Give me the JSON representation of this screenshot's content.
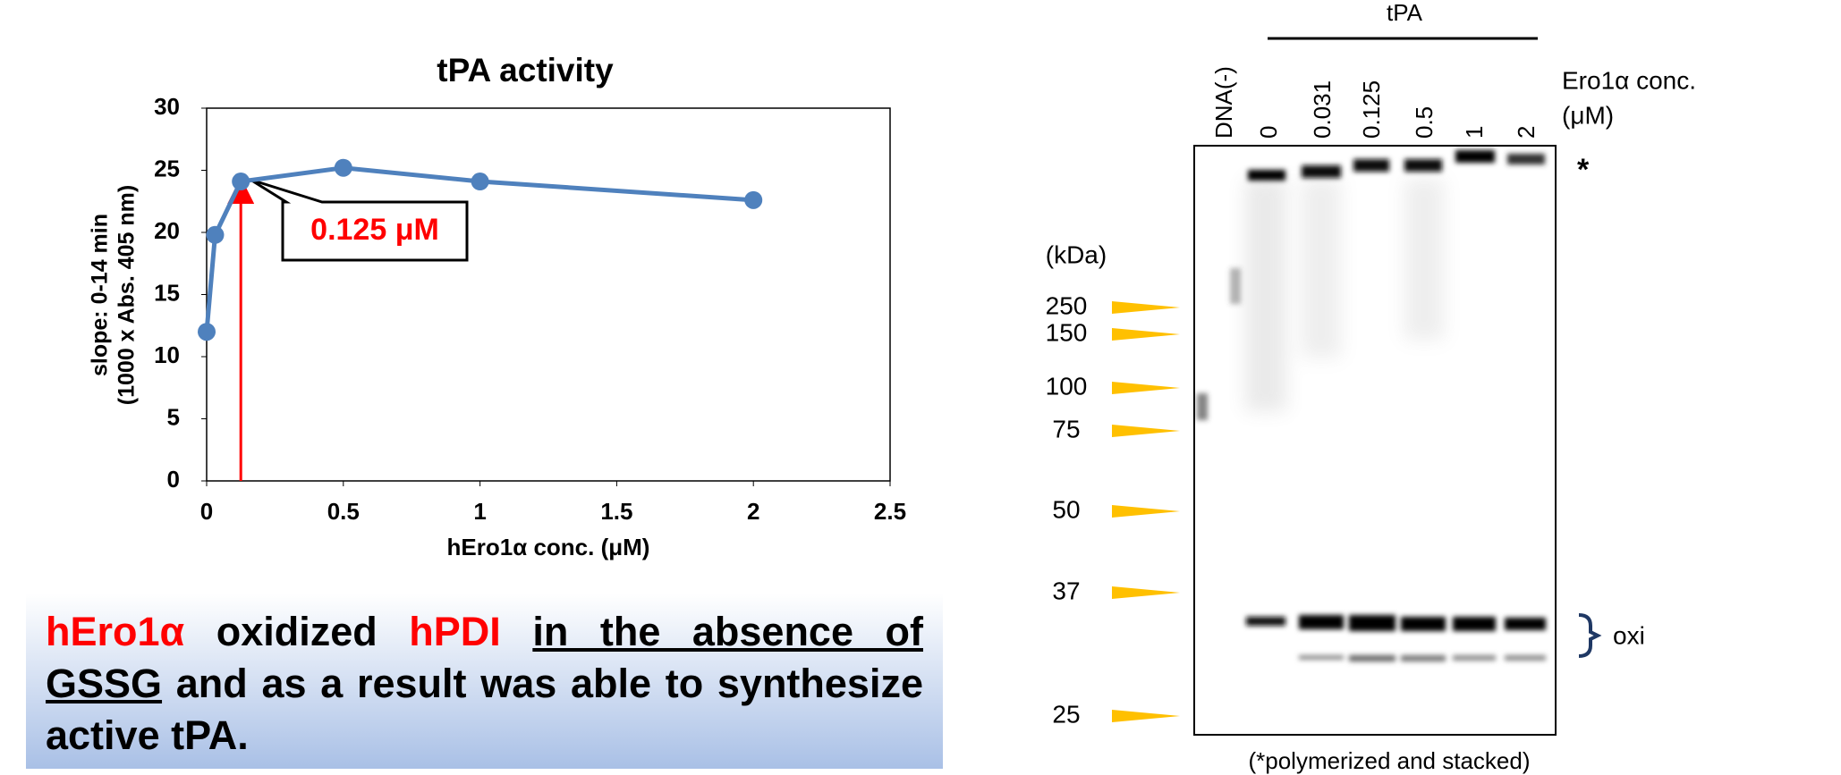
{
  "chart_data": {
    "type": "line",
    "title": "tPA activity",
    "x_label": "hEro1α conc. (μM)",
    "y_label": [
      "slope: 0-14 min",
      "(1000 x Abs. 405 nm)"
    ],
    "x": [
      0,
      0.031,
      0.125,
      0.5,
      1,
      2
    ],
    "values": [
      12,
      19.8,
      24.1,
      25.2,
      24.1,
      22.6
    ],
    "color": "#4f81bd",
    "xlim": [
      0,
      2.5
    ],
    "xticks": [
      0,
      0.5,
      1,
      1.5,
      2,
      2.5
    ],
    "ylim": [
      0,
      30
    ],
    "yticks": [
      0,
      5,
      10,
      15,
      20,
      25,
      30
    ],
    "grid": false,
    "annotation": {
      "text": "0.125 μM",
      "x": 0.125,
      "color": "#ff0000"
    }
  },
  "statement": [
    {
      "text": "hEro1α",
      "color": "#ff0000"
    },
    {
      "text": " oxidized "
    },
    {
      "text": "hPDI ",
      "color": "#ff0000"
    },
    {
      "text": "in the absence of GSSG",
      "underline": true
    },
    {
      "text": " and as a result was able to synthesize active tPA."
    }
  ],
  "gel": {
    "group_label": "tPA",
    "conc_label": [
      "Ero1α conc.",
      "(μM)"
    ],
    "lanes": [
      "DNA(-)",
      "0",
      "0.031",
      "0.125",
      "0.5",
      "1",
      "2"
    ],
    "unit": "(kDa)",
    "markers": [
      "250",
      "150",
      "100",
      "75",
      "50",
      "37",
      "25"
    ],
    "star": "*",
    "band_label": "oxi",
    "footnote": "(*polymerized and stacked)"
  }
}
